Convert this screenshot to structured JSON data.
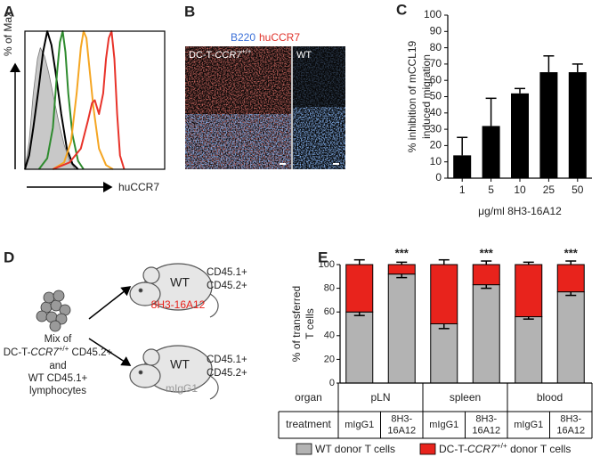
{
  "chart_data": [
    {
      "type": "histogram-overlay",
      "panel": "A",
      "ylabel": "% of Max",
      "xlabel": "huCCR7",
      "xlim": [
        0,
        100
      ],
      "ylim": [
        0,
        100
      ],
      "series": [
        {
          "color": "#c8c8c8",
          "fill": true,
          "x": [
            0,
            3,
            6,
            9,
            11,
            14,
            17,
            20,
            24,
            28,
            32,
            36
          ],
          "values": [
            0,
            20,
            55,
            80,
            88,
            82,
            70,
            55,
            35,
            18,
            6,
            0
          ]
        },
        {
          "color": "#000000",
          "x": [
            0,
            3,
            6,
            10,
            13,
            16,
            19,
            22,
            26,
            30,
            34,
            38
          ],
          "values": [
            0,
            10,
            30,
            60,
            85,
            100,
            90,
            70,
            40,
            15,
            4,
            0
          ]
        },
        {
          "color": "#2e8b2e",
          "x": [
            10,
            16,
            20,
            23,
            25,
            27,
            29,
            31,
            34,
            38,
            42
          ],
          "values": [
            0,
            8,
            30,
            70,
            92,
            100,
            85,
            55,
            25,
            6,
            0
          ]
        },
        {
          "color": "#f5a623",
          "x": [
            20,
            28,
            33,
            37,
            40,
            42,
            44,
            46,
            49,
            53,
            58,
            63
          ],
          "values": [
            0,
            5,
            20,
            55,
            88,
            100,
            95,
            75,
            45,
            15,
            3,
            0
          ]
        },
        {
          "color": "#e8332a",
          "x": [
            20,
            32,
            40,
            45,
            48,
            50,
            53,
            56,
            58,
            60,
            62,
            64,
            66,
            68,
            71
          ],
          "values": [
            0,
            5,
            15,
            35,
            48,
            50,
            40,
            55,
            80,
            95,
            100,
            80,
            40,
            10,
            0
          ]
        }
      ]
    },
    {
      "type": "bar",
      "panel": "C",
      "ylabel": [
        "% inhibition of mCCL19",
        "induced migration"
      ],
      "xlabel": "μg/ml 8H3-16A12",
      "categories": [
        "1",
        "5",
        "10",
        "25",
        "50"
      ],
      "values": [
        14,
        32,
        52,
        65,
        65
      ],
      "errors": [
        11,
        17,
        3,
        10,
        5
      ],
      "color": "#000000",
      "ylim": [
        0,
        100
      ],
      "yticks": [
        0,
        10,
        20,
        30,
        40,
        50,
        60,
        70,
        80,
        90,
        100
      ]
    },
    {
      "type": "stacked-bar",
      "panel": "E",
      "ylabel": [
        "% of transferred",
        "T cells"
      ],
      "categories": [
        "mIgG1",
        "8H3-16A12",
        "mIgG1",
        "8H3-16A12",
        "mIgG1",
        "8H3-16A12"
      ],
      "groups": [
        "pLN",
        "spleen",
        "blood"
      ],
      "row_headers": [
        "organ",
        "treatment"
      ],
      "annotations": [
        null,
        "***",
        null,
        "***",
        null,
        "***"
      ],
      "series": [
        {
          "name": "WT donor T cells",
          "color": "#b3b3b3",
          "values": [
            60,
            92,
            50,
            83,
            56,
            77
          ],
          "errors": [
            3,
            3,
            4,
            3,
            2,
            3
          ]
        },
        {
          "name": "DC-T-CCR7+/+ donor T cells",
          "color": "#e8231c",
          "values": [
            40,
            8,
            50,
            17,
            44,
            23
          ],
          "errors": [
            4,
            2,
            4,
            3,
            2,
            3
          ]
        }
      ],
      "ylim": [
        0,
        100
      ],
      "yticks": [
        0,
        20,
        40,
        60,
        80,
        100
      ]
    }
  ],
  "image_panel": {
    "panel": "B",
    "stains": [
      {
        "name": "B220",
        "color": "#3a6fd8"
      },
      {
        "name": "huCCR7",
        "color": "#e0322a"
      }
    ],
    "images": [
      "DC-T-CCR7+/+",
      "WT"
    ]
  },
  "diagram": {
    "panel": "D",
    "source": [
      "Mix of",
      "DC-T-CCR7+/+ CD45.2+",
      "and",
      "WT CD45.1+",
      "lymphocytes"
    ],
    "mice": [
      {
        "label": "WT",
        "treatment": "8H3-16A12",
        "markers": [
          "CD45.1+",
          "CD45.2+"
        ]
      },
      {
        "label": "WT",
        "treatment": "mIgG1",
        "markers": [
          "CD45.1+",
          "CD45.2+"
        ]
      }
    ]
  }
}
